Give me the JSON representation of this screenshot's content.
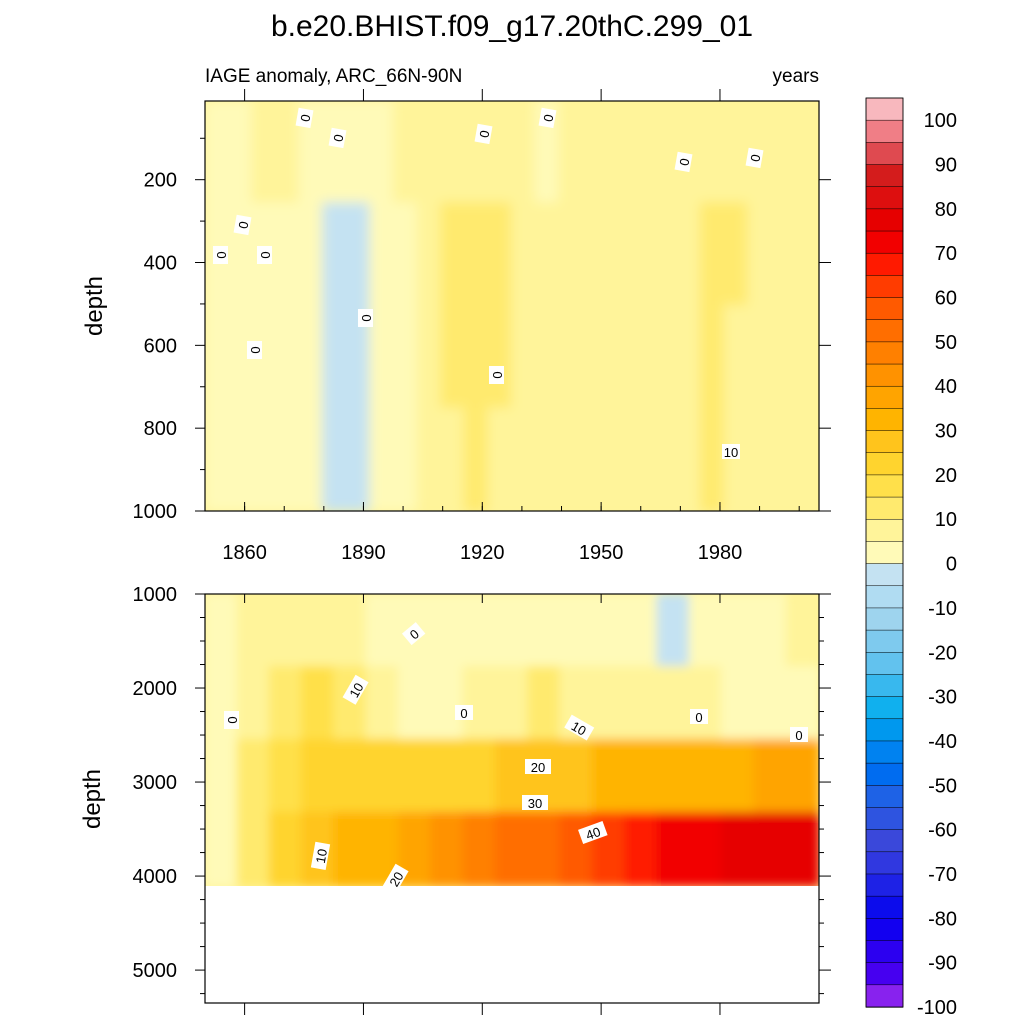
{
  "title": "b.e20.BHIST.f09_g17.20thC.299_01",
  "chart_data": [
    {
      "type": "heatmap",
      "panel": "upper",
      "left_label": "IAGE anomaly, ARC_66N-90N",
      "right_label": "years",
      "xlabel": "",
      "ylabel": "depth",
      "x_ticks": [
        1860,
        1890,
        1920,
        1950,
        1980
      ],
      "xlim": [
        1850,
        2005
      ],
      "y_ticks": [
        200,
        400,
        600,
        800,
        1000
      ],
      "ylim": [
        1000,
        10
      ],
      "colormap_values": [
        [
          0,
          0,
          1,
          1,
          0,
          -1,
          -1,
          0,
          1,
          2,
          3,
          4,
          3,
          1,
          0,
          1,
          2,
          2,
          1,
          1,
          2,
          4,
          3,
          2,
          1,
          1
        ],
        [
          0,
          -1,
          -1,
          -2,
          -4,
          -6,
          -8,
          -3,
          0,
          3,
          6,
          10,
          7,
          2,
          1,
          3,
          5,
          3,
          2,
          3,
          5,
          9,
          6,
          3,
          2,
          1
        ],
        [
          0,
          -1,
          -1,
          -2,
          -4,
          -8,
          -9,
          -4,
          0,
          3,
          6,
          10,
          6,
          2,
          1,
          3,
          5,
          3,
          2,
          3,
          5,
          8,
          5,
          3,
          2,
          1
        ],
        [
          0,
          -1,
          -1,
          -2,
          -3,
          -6,
          -7,
          -3,
          0,
          2,
          5,
          7,
          4,
          1,
          1,
          2,
          4,
          2,
          2,
          3,
          4,
          6,
          4,
          2,
          1,
          1
        ]
      ],
      "contour_labels": [
        "0",
        "0",
        "0",
        "0",
        "0",
        "0",
        "0",
        "0",
        "0",
        "0",
        "0",
        "0",
        "10",
        "10"
      ]
    },
    {
      "type": "heatmap",
      "panel": "lower",
      "xlabel": "",
      "ylabel": "depth",
      "y_ticks": [
        1000,
        2000,
        3000,
        4000,
        5000
      ],
      "ylim": [
        1000,
        5350
      ],
      "data_max_depth": 4120,
      "x_range": [
        1850,
        2005
      ],
      "colormap_values": [
        [
          0,
          1,
          2,
          2,
          1,
          0,
          -2,
          -4,
          -3,
          -1,
          0,
          -2,
          -3,
          -4,
          -5,
          -4,
          -2,
          0,
          1
        ],
        [
          -2,
          2,
          10,
          12,
          8,
          3,
          0,
          -1,
          1,
          4,
          6,
          5,
          3,
          2,
          1,
          1,
          0,
          -1,
          0
        ],
        [
          -1,
          6,
          15,
          18,
          18,
          17,
          17,
          18,
          20,
          22,
          24,
          25,
          26,
          27,
          28,
          29,
          30,
          31,
          32
        ],
        [
          -1,
          8,
          18,
          22,
          26,
          30,
          34,
          38,
          42,
          46,
          50,
          54,
          58,
          62,
          66,
          70,
          72,
          73,
          74
        ]
      ],
      "contour_labels": [
        "0",
        "0",
        "0",
        "0",
        "0",
        "10",
        "10",
        "10",
        "20",
        "20",
        "30",
        "40"
      ]
    }
  ],
  "colorbar": {
    "labels": [
      "100",
      "90",
      "80",
      "70",
      "60",
      "50",
      "40",
      "30",
      "20",
      "10",
      "0",
      "-10",
      "-20",
      "-30",
      "-40",
      "-50",
      "-60",
      "-70",
      "-80",
      "-90",
      "-100"
    ],
    "colors": [
      "#f8b8be",
      "#f07e86",
      "#df4a50",
      "#d41c1c",
      "#dd0f0f",
      "#e60000",
      "#f20000",
      "#ff1a00",
      "#ff3c00",
      "#ff5a00",
      "#ff6e00",
      "#ff8000",
      "#ff9200",
      "#ffa400",
      "#ffb400",
      "#ffc41c",
      "#ffd42e",
      "#ffe04a",
      "#ffea6e",
      "#fff49a",
      "#fffab8",
      "#c4e2f2",
      "#b0dcf2",
      "#9ed4ee",
      "#7ecaee",
      "#62c2ee",
      "#38b8ee",
      "#10b0ee",
      "#0098ee",
      "#0082f0",
      "#006cf0",
      "#1e62e6",
      "#2e54e0",
      "#3a48da",
      "#3038e0",
      "#1e22e6",
      "#0c0cec",
      "#1200f0",
      "#2c00f0",
      "#4600f0",
      "#8822ee"
    ]
  }
}
